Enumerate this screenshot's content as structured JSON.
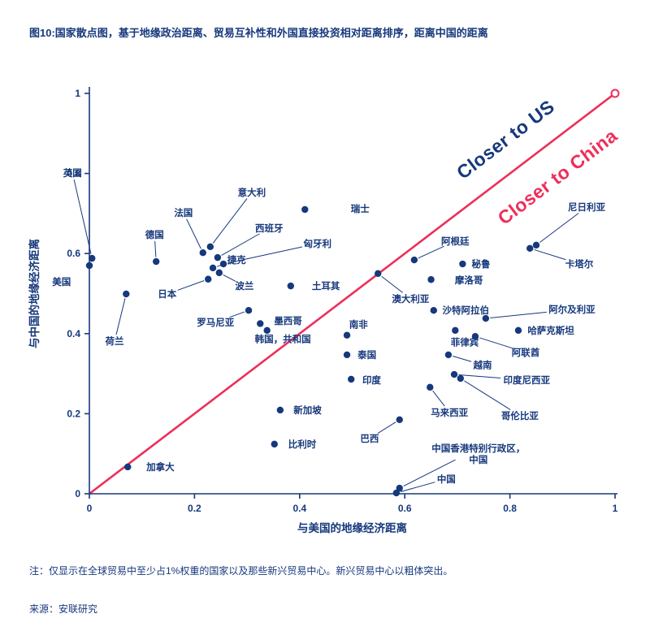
{
  "page": {
    "title_prefix": "图10:",
    "title": "国家散点图，基于地缘政治距离、贸易互补性和外国直接投资相对距离排序，距离中国的距离",
    "note": "注：仅显示在全球贸易中至少占1%权重的国家以及那些新兴贸易中心。新兴贸易中心以粗体突出。",
    "source": "来源：安联研究"
  },
  "colors": {
    "navy": "#16387c",
    "pink": "#ee2e5a",
    "background": "#ffffff"
  },
  "chart_data": {
    "type": "scatter",
    "xlabel": "与美国的地缘经济距离",
    "ylabel": "与中国的地缘经济距离",
    "xlim": [
      0,
      1
    ],
    "ylim": [
      0,
      1
    ],
    "xticks": [
      "0",
      "0.2",
      "0.4",
      "0.6",
      "0.8",
      "1"
    ],
    "yticks": [
      "0",
      "0.2",
      "0.4",
      "0.6",
      "0.8",
      "1"
    ],
    "grid": false,
    "legend": "none",
    "diagonal": {
      "from": [
        0,
        0
      ],
      "to": [
        1,
        1
      ],
      "label_above": "Closer to US",
      "label_below": "Closer to China",
      "endpoint_marker": true
    },
    "points": [
      {
        "label": "英国",
        "x": 0.005,
        "y": 0.588,
        "lx": -0.032,
        "ly": 0.801,
        "leader": true
      },
      {
        "label": "美国",
        "x": 0.0,
        "y": 0.57,
        "lx": -0.053,
        "ly": 0.529,
        "leader": false
      },
      {
        "label": "德国",
        "x": 0.127,
        "y": 0.58,
        "lx": 0.124,
        "ly": 0.647,
        "leader": true
      },
      {
        "label": "法国",
        "x": 0.216,
        "y": 0.602,
        "lx": 0.179,
        "ly": 0.702,
        "leader": true
      },
      {
        "label": "意大利",
        "x": 0.23,
        "y": 0.617,
        "lx": 0.309,
        "ly": 0.753,
        "leader": true
      },
      {
        "label": "西班牙",
        "x": 0.244,
        "y": 0.59,
        "lx": 0.342,
        "ly": 0.663,
        "leader": true
      },
      {
        "label": "匈牙利",
        "x": 0.255,
        "y": 0.574,
        "lx": 0.434,
        "ly": 0.625,
        "leader": true
      },
      {
        "label": "捷克",
        "x": 0.235,
        "y": 0.564,
        "lx": 0.28,
        "ly": 0.584,
        "leader": true
      },
      {
        "label": "波兰",
        "x": 0.247,
        "y": 0.552,
        "lx": 0.295,
        "ly": 0.519,
        "leader": true
      },
      {
        "label": "日本",
        "x": 0.226,
        "y": 0.536,
        "lx": 0.148,
        "ly": 0.499,
        "leader": true
      },
      {
        "label": "荷兰",
        "x": 0.07,
        "y": 0.499,
        "lx": 0.048,
        "ly": 0.381,
        "leader": true
      },
      {
        "label": "土耳其",
        "x": 0.383,
        "y": 0.519,
        "lx": 0.45,
        "ly": 0.519,
        "leader": false
      },
      {
        "label": "瑞士",
        "x": 0.41,
        "y": 0.71,
        "lx": 0.515,
        "ly": 0.712,
        "leader": false
      },
      {
        "label": "罗马尼亚",
        "x": 0.303,
        "y": 0.458,
        "lx": 0.24,
        "ly": 0.428,
        "leader": true
      },
      {
        "label": "墨西哥",
        "x": 0.325,
        "y": 0.425,
        "lx": 0.378,
        "ly": 0.432,
        "leader": false
      },
      {
        "label": "韩国，共和国",
        "x": 0.338,
        "y": 0.408,
        "lx": 0.368,
        "ly": 0.386,
        "leader": false
      },
      {
        "label": "南非",
        "x": 0.49,
        "y": 0.396,
        "lx": 0.512,
        "ly": 0.423,
        "leader": false
      },
      {
        "label": "泰国",
        "x": 0.49,
        "y": 0.347,
        "lx": 0.528,
        "ly": 0.347,
        "leader": false
      },
      {
        "label": "印度",
        "x": 0.498,
        "y": 0.286,
        "lx": 0.537,
        "ly": 0.284,
        "leader": false
      },
      {
        "label": "新加坡",
        "x": 0.363,
        "y": 0.209,
        "lx": 0.415,
        "ly": 0.209,
        "leader": false
      },
      {
        "label": "比利时",
        "x": 0.352,
        "y": 0.124,
        "lx": 0.405,
        "ly": 0.124,
        "leader": false
      },
      {
        "label": "加拿大",
        "x": 0.073,
        "y": 0.067,
        "lx": 0.135,
        "ly": 0.067,
        "leader": false
      },
      {
        "label": "巴西",
        "x": 0.59,
        "y": 0.185,
        "lx": 0.533,
        "ly": 0.138,
        "leader": true
      },
      {
        "label": "中国",
        "x": 0.584,
        "y": 0.002,
        "lx": 0.679,
        "ly": 0.037,
        "leader": true
      },
      {
        "label": "中国香港特别行政区，\n中国",
        "x": 0.59,
        "y": 0.014,
        "lx": 0.74,
        "ly": 0.114,
        "leader": true
      },
      {
        "label": "马来西亚",
        "x": 0.648,
        "y": 0.266,
        "lx": 0.685,
        "ly": 0.203,
        "leader": true
      },
      {
        "label": "哥伦比亚",
        "x": 0.706,
        "y": 0.288,
        "lx": 0.819,
        "ly": 0.195,
        "leader": true
      },
      {
        "label": "印度尼西亚",
        "x": 0.694,
        "y": 0.298,
        "lx": 0.832,
        "ly": 0.284,
        "leader": true
      },
      {
        "label": "越南",
        "x": 0.683,
        "y": 0.347,
        "lx": 0.748,
        "ly": 0.322,
        "leader": true
      },
      {
        "label": "阿联酋",
        "x": 0.734,
        "y": 0.393,
        "lx": 0.83,
        "ly": 0.353,
        "leader": true
      },
      {
        "label": "菲律宾",
        "x": 0.696,
        "y": 0.408,
        "lx": 0.714,
        "ly": 0.378,
        "leader": false
      },
      {
        "label": "哈萨克斯坦",
        "x": 0.816,
        "y": 0.408,
        "lx": 0.878,
        "ly": 0.408,
        "leader": false
      },
      {
        "label": "阿尔及利亚",
        "x": 0.754,
        "y": 0.438,
        "lx": 0.918,
        "ly": 0.46,
        "leader": true
      },
      {
        "label": "沙特阿拉伯",
        "x": 0.655,
        "y": 0.458,
        "lx": 0.716,
        "ly": 0.458,
        "leader": false
      },
      {
        "label": "摩洛哥",
        "x": 0.65,
        "y": 0.535,
        "lx": 0.722,
        "ly": 0.533,
        "leader": false
      },
      {
        "label": "阿根廷",
        "x": 0.618,
        "y": 0.584,
        "lx": 0.696,
        "ly": 0.631,
        "leader": true
      },
      {
        "label": "秘鲁",
        "x": 0.71,
        "y": 0.574,
        "lx": 0.745,
        "ly": 0.574,
        "leader": false
      },
      {
        "label": "澳大利亚",
        "x": 0.549,
        "y": 0.55,
        "lx": 0.611,
        "ly": 0.487,
        "leader": true
      },
      {
        "label": "尼日利亚",
        "x": 0.85,
        "y": 0.621,
        "lx": 0.946,
        "ly": 0.716,
        "leader": true
      },
      {
        "label": "卡塔尔",
        "x": 0.838,
        "y": 0.613,
        "lx": 0.932,
        "ly": 0.574,
        "leader": true
      }
    ]
  }
}
